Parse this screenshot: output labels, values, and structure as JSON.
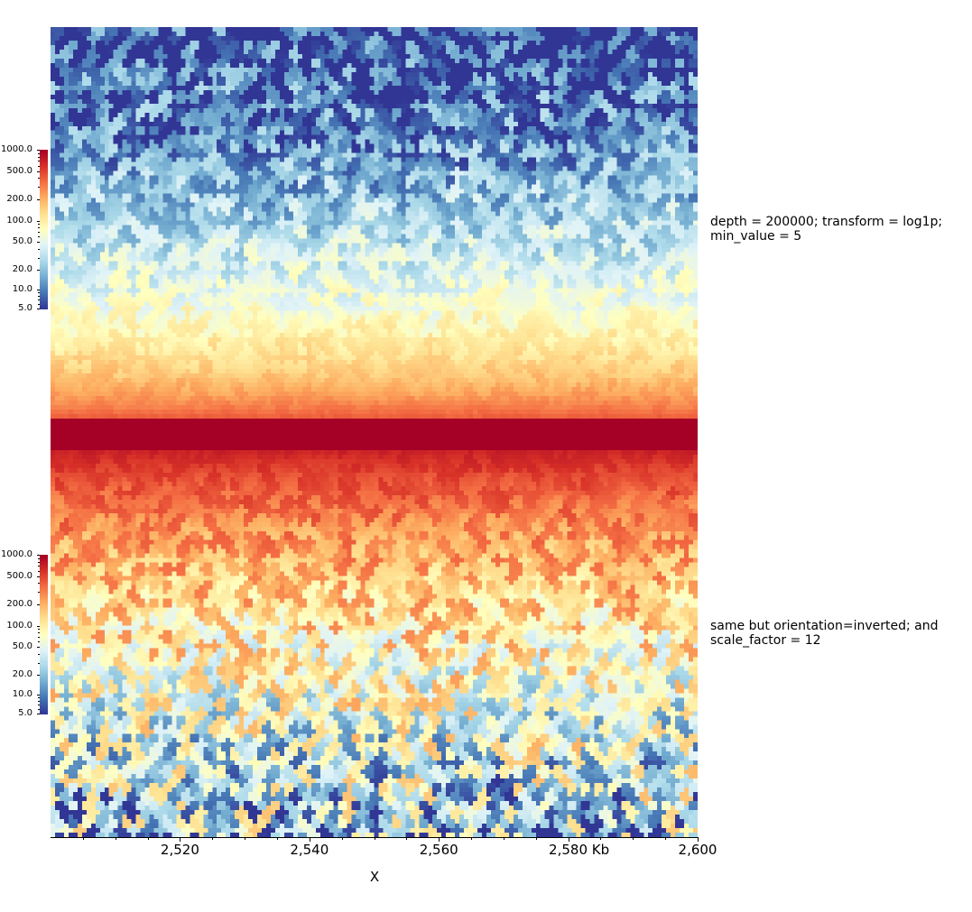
{
  "chart_data": {
    "type": "heatmap",
    "description_type": "hic-matrix-triangle",
    "colormap": "RdYlBu_r",
    "x_unit_label": "Kb",
    "xlabel": "X",
    "x_range": [
      2500,
      2600
    ],
    "x_ticks": [
      {
        "value": 2520,
        "label": "2,520"
      },
      {
        "value": 2540,
        "label": "2,540"
      },
      {
        "value": 2560,
        "label": "2,560"
      },
      {
        "value": 2580,
        "label": "2,580 Kb"
      },
      {
        "value": 2600,
        "label": "2,600"
      }
    ],
    "colorbar_ticks": [
      "1000.0",
      "500.0",
      "200.0",
      "100.0",
      "50.0",
      "20.0",
      "10.0",
      "5.0"
    ],
    "colorbar_tick_values": [
      1000,
      500,
      200,
      100,
      50,
      20,
      10,
      5
    ],
    "colorbar_range": [
      5,
      1000
    ],
    "colors": {
      "low": "#313695",
      "high": "#a50026"
    },
    "tracks": [
      {
        "label": "depth = 200000; transform = log1p; min_value = 5",
        "orientation": "normal"
      },
      {
        "label": "same but orientation=inverted; and scale_factor = 12",
        "orientation": "inverted"
      }
    ]
  }
}
